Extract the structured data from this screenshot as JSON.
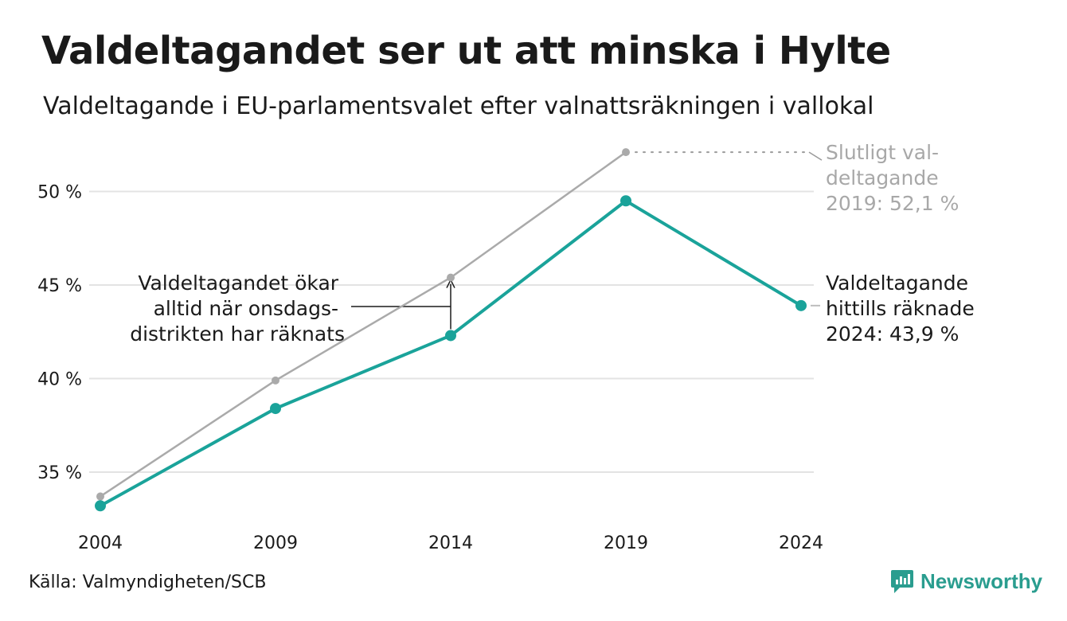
{
  "title": "Valdeltagandet ser ut att minska i Hylte",
  "subtitle": "Valdeltagande i EU-parlamentsvalet efter valnattsräkningen i vallokal",
  "source": "Källa: Valmyndigheten/SCB",
  "brand": "Newsworthy",
  "colors": {
    "counted": "#1aa39a",
    "final": "#aaaaaa",
    "grid": "#e3e3e3",
    "text": "#1a1a1a"
  },
  "chart_data": {
    "type": "line",
    "x": [
      "2004",
      "2009",
      "2014",
      "2019",
      "2024"
    ],
    "y_ticks": [
      "35 %",
      "40 %",
      "45 %",
      "50 %"
    ],
    "y_tick_values": [
      35,
      40,
      45,
      50
    ],
    "ylim": [
      32.5,
      54
    ],
    "grid": true,
    "series": [
      {
        "key": "final",
        "color": "#aaaaaa",
        "values": [
          33.7,
          39.9,
          45.4,
          52.1,
          null
        ]
      },
      {
        "key": "counted",
        "color": "#1aa39a",
        "values": [
          33.2,
          38.4,
          42.3,
          49.5,
          43.9
        ]
      }
    ],
    "annotations": {
      "final_2019": [
        "Slutligt val-",
        "deltagande",
        "2019: 52,1 %"
      ],
      "counted_2024": [
        "Valdeltagande",
        "hittills räknade",
        "2024: 43,9 %"
      ],
      "wednesday": [
        "Valdeltagandet ökar",
        "alltid när onsdags-",
        "distrikten har räknats"
      ]
    }
  }
}
